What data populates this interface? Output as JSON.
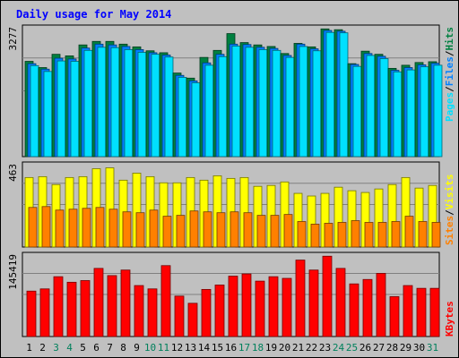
{
  "chart_data": [
    {
      "type": "bar",
      "title": "Daily usage for May 2014",
      "panel": "top",
      "categories": [
        "1",
        "2",
        "3",
        "4",
        "5",
        "6",
        "7",
        "8",
        "9",
        "10",
        "11",
        "12",
        "13",
        "14",
        "15",
        "16",
        "17",
        "18",
        "19",
        "20",
        "21",
        "22",
        "23",
        "24",
        "25",
        "26",
        "27",
        "28",
        "29",
        "30",
        "31"
      ],
      "weekend_categories": [
        "3",
        "4",
        "10",
        "11",
        "17",
        "18",
        "24",
        "25",
        "31"
      ],
      "y_max_label": "3277",
      "ylim": [
        0,
        3277
      ],
      "series": [
        {
          "name": "Hits",
          "color": "#008040",
          "values": [
            2440,
            2280,
            2620,
            2580,
            2860,
            2950,
            2950,
            2880,
            2810,
            2710,
            2660,
            2140,
            2010,
            2540,
            2720,
            3150,
            2920,
            2860,
            2820,
            2640,
            2900,
            2810,
            3270,
            3250,
            2380,
            2700,
            2620,
            2260,
            2340,
            2410,
            2430
          ]
        },
        {
          "name": "Files",
          "color": "#0080ff",
          "values": [
            2380,
            2240,
            2520,
            2500,
            2780,
            2880,
            2860,
            2820,
            2740,
            2660,
            2600,
            2080,
            1940,
            2400,
            2620,
            2880,
            2870,
            2800,
            2770,
            2590,
            2880,
            2760,
            3230,
            3210,
            2360,
            2640,
            2570,
            2210,
            2280,
            2350,
            2390
          ]
        },
        {
          "name": "Pages",
          "color": "#00e0ff",
          "values": [
            2330,
            2180,
            2450,
            2440,
            2720,
            2800,
            2790,
            2740,
            2670,
            2620,
            2550,
            2030,
            1890,
            2340,
            2560,
            2830,
            2800,
            2740,
            2720,
            2540,
            2820,
            2710,
            3180,
            3170,
            2310,
            2590,
            2510,
            2170,
            2220,
            2300,
            2340
          ]
        }
      ]
    },
    {
      "type": "bar",
      "panel": "middle",
      "categories": [
        "1",
        "2",
        "3",
        "4",
        "5",
        "6",
        "7",
        "8",
        "9",
        "10",
        "11",
        "12",
        "13",
        "14",
        "15",
        "16",
        "17",
        "18",
        "19",
        "20",
        "21",
        "22",
        "23",
        "24",
        "25",
        "26",
        "27",
        "28",
        "29",
        "30",
        "31"
      ],
      "y_max_label": "463",
      "ylim": [
        0,
        463
      ],
      "series": [
        {
          "name": "Visits",
          "color": "#ffff00",
          "values": [
            395,
            400,
            355,
            395,
            400,
            445,
            450,
            380,
            420,
            400,
            365,
            365,
            395,
            380,
            405,
            390,
            395,
            345,
            350,
            370,
            305,
            290,
            305,
            340,
            320,
            310,
            330,
            355,
            395,
            335,
            350
          ]
        },
        {
          "name": "Sites",
          "color": "#ff8000",
          "values": [
            225,
            230,
            210,
            215,
            220,
            225,
            215,
            200,
            195,
            210,
            175,
            180,
            205,
            200,
            195,
            200,
            195,
            180,
            180,
            185,
            145,
            130,
            135,
            140,
            150,
            140,
            140,
            145,
            175,
            145,
            140
          ]
        }
      ]
    },
    {
      "type": "bar",
      "panel": "bottom",
      "categories": [
        "1",
        "2",
        "3",
        "4",
        "5",
        "6",
        "7",
        "8",
        "9",
        "10",
        "11",
        "12",
        "13",
        "14",
        "15",
        "16",
        "17",
        "18",
        "19",
        "20",
        "21",
        "22",
        "23",
        "24",
        "25",
        "26",
        "27",
        "28",
        "29",
        "30",
        "31"
      ],
      "y_max_label": "145419",
      "ylim": [
        0,
        145419
      ],
      "series": [
        {
          "name": "KBytes",
          "color": "#ff0000",
          "values": [
            82000,
            86000,
            108000,
            98000,
            101000,
            123000,
            110000,
            120000,
            92000,
            86000,
            128000,
            73000,
            60000,
            85000,
            93000,
            109000,
            113000,
            100000,
            108000,
            105000,
            138000,
            120000,
            145000,
            123000,
            95000,
            103000,
            114000,
            72000,
            92000,
            87000,
            87000
          ]
        }
      ]
    }
  ],
  "legends": {
    "top": [
      {
        "label": "Pages",
        "color": "#00e0ff"
      },
      {
        "label": "/",
        "color": "#000000"
      },
      {
        "label": "Files",
        "color": "#0080ff"
      },
      {
        "label": "/",
        "color": "#000000"
      },
      {
        "label": "Hits",
        "color": "#008040"
      }
    ],
    "middle": [
      {
        "label": "Sites",
        "color": "#ff8000"
      },
      {
        "label": "/",
        "color": "#000000"
      },
      {
        "label": "Visits",
        "color": "#ffff00"
      }
    ],
    "bottom": [
      {
        "label": "KBytes",
        "color": "#ff0000"
      }
    ]
  },
  "colors": {
    "title": "#0000ff",
    "plot_bg": "#c0c0c0",
    "weekend_label": "#00805c",
    "weekday_label": "#000000"
  }
}
